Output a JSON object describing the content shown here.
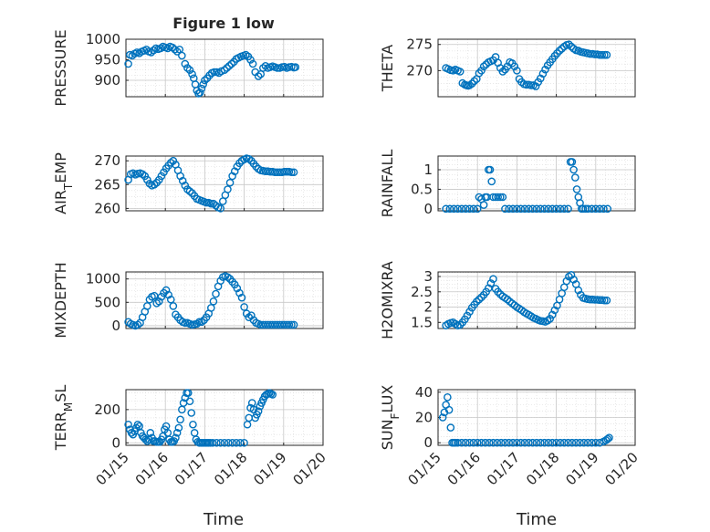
{
  "figure": {
    "title": "Figure 1 low",
    "x_date_ticks": [
      "01/15",
      "01/16",
      "01/17",
      "01/18",
      "01/19",
      "01/20"
    ],
    "x_axis_label": "Time",
    "marker_color": "#0072BD",
    "grid_color": "#d9d9d9",
    "axes_color": "#262626"
  },
  "chart_data": [
    {
      "type": "scatter",
      "ylabel": "PRESSURE",
      "ylim": [
        860,
        1000
      ],
      "yticks": [
        900,
        950,
        1000
      ],
      "yticklabels": [
        "900",
        "950",
        "1000"
      ],
      "xlim": [
        0,
        5
      ],
      "grid": true,
      "x": [
        0.06,
        0.1,
        0.16,
        0.22,
        0.28,
        0.34,
        0.4,
        0.46,
        0.52,
        0.58,
        0.64,
        0.7,
        0.76,
        0.82,
        0.88,
        0.94,
        1.0,
        1.06,
        1.12,
        1.18,
        1.24,
        1.3,
        1.36,
        1.42,
        1.5,
        1.56,
        1.62,
        1.68,
        1.72,
        1.76,
        1.8,
        1.84,
        1.88,
        1.92,
        1.96,
        2.0,
        2.06,
        2.12,
        2.18,
        2.24,
        2.3,
        2.36,
        2.42,
        2.5,
        2.56,
        2.62,
        2.68,
        2.74,
        2.8,
        2.86,
        2.92,
        2.98,
        3.04,
        3.1,
        3.16,
        3.22,
        3.28,
        3.36,
        3.42,
        3.48,
        3.54,
        3.6,
        3.66,
        3.72,
        3.78,
        3.84,
        3.9,
        3.96,
        4.02,
        4.08,
        4.14,
        4.2,
        4.26,
        4.3
      ],
      "y": [
        940,
        962,
        960,
        965,
        968,
        966,
        970,
        972,
        975,
        970,
        968,
        973,
        978,
        976,
        978,
        982,
        980,
        978,
        982,
        980,
        975,
        970,
        975,
        960,
        940,
        930,
        925,
        915,
        905,
        890,
        875,
        868,
        870,
        880,
        890,
        900,
        905,
        912,
        918,
        920,
        920,
        918,
        922,
        925,
        930,
        935,
        940,
        945,
        952,
        955,
        958,
        960,
        962,
        958,
        950,
        940,
        920,
        910,
        915,
        930,
        935,
        930,
        932,
        934,
        932,
        930,
        930,
        932,
        933,
        930,
        932,
        933,
        931,
        932
      ],
      "series": []
    },
    {
      "type": "scatter",
      "ylabel": "THETA",
      "ylim": [
        265,
        276
      ],
      "yticks": [
        270,
        275
      ],
      "yticklabels": [
        "270",
        "275"
      ],
      "xlim": [
        0,
        5
      ],
      "grid": true,
      "x": [
        0.2,
        0.26,
        0.32,
        0.38,
        0.44,
        0.5,
        0.56,
        0.62,
        0.68,
        0.72,
        0.76,
        0.8,
        0.86,
        0.92,
        0.98,
        1.04,
        1.1,
        1.16,
        1.22,
        1.28,
        1.34,
        1.4,
        1.46,
        1.52,
        1.58,
        1.64,
        1.7,
        1.76,
        1.82,
        1.88,
        1.94,
        2.0,
        2.06,
        2.12,
        2.18,
        2.24,
        2.3,
        2.36,
        2.42,
        2.48,
        2.54,
        2.6,
        2.66,
        2.72,
        2.78,
        2.84,
        2.9,
        2.96,
        3.02,
        3.08,
        3.14,
        3.2,
        3.26,
        3.32,
        3.38,
        3.44,
        3.5,
        3.56,
        3.62,
        3.68,
        3.74,
        3.8,
        3.86,
        3.92,
        3.98,
        4.04,
        4.1,
        4.16,
        4.22,
        4.28
      ],
      "y": [
        270.5,
        270.3,
        270.1,
        270.0,
        270.2,
        270.0,
        269.8,
        267.6,
        267.3,
        267.2,
        267.1,
        267.2,
        267.5,
        268.0,
        268.4,
        269.5,
        270.0,
        270.8,
        271.2,
        271.6,
        271.8,
        272.0,
        272.6,
        271.5,
        270.5,
        269.8,
        270.2,
        270.8,
        271.6,
        271.4,
        270.8,
        270.0,
        268.4,
        267.8,
        267.4,
        267.3,
        267.3,
        267.2,
        267.2,
        267.0,
        267.8,
        268.5,
        269.4,
        270.2,
        271.0,
        271.6,
        272.2,
        272.8,
        273.3,
        273.8,
        274.2,
        274.6,
        274.9,
        275.0,
        274.6,
        274.2,
        273.9,
        273.8,
        273.6,
        273.5,
        273.4,
        273.3,
        273.2,
        273.2,
        273.1,
        273.1,
        273.0,
        273.0,
        273.0,
        273.0
      ],
      "series": []
    },
    {
      "type": "scatter",
      "ylabel": "AIR_TEMP",
      "ylim": [
        259.5,
        271
      ],
      "yticks": [
        260,
        265,
        270
      ],
      "yticklabels": [
        "260",
        "265",
        "270"
      ],
      "xlim": [
        0,
        5
      ],
      "grid": true,
      "x": [
        0.06,
        0.12,
        0.18,
        0.24,
        0.3,
        0.36,
        0.42,
        0.48,
        0.54,
        0.6,
        0.66,
        0.72,
        0.78,
        0.84,
        0.9,
        0.96,
        1.02,
        1.08,
        1.14,
        1.2,
        1.26,
        1.32,
        1.38,
        1.44,
        1.5,
        1.56,
        1.62,
        1.68,
        1.74,
        1.8,
        1.86,
        1.92,
        1.98,
        2.04,
        2.1,
        2.16,
        2.22,
        2.28,
        2.34,
        2.4,
        2.46,
        2.52,
        2.58,
        2.64,
        2.7,
        2.76,
        2.82,
        2.88,
        2.94,
        3.0,
        3.06,
        3.12,
        3.18,
        3.24,
        3.3,
        3.36,
        3.42,
        3.48,
        3.54,
        3.6,
        3.66,
        3.72,
        3.78,
        3.84,
        3.9,
        3.96,
        4.02,
        4.08,
        4.14,
        4.2,
        4.26
      ],
      "y": [
        266.0,
        267.2,
        267.4,
        267.1,
        267.3,
        267.4,
        267.2,
        266.8,
        266.0,
        265.2,
        264.8,
        265.0,
        265.4,
        266.0,
        266.8,
        267.6,
        268.4,
        269.0,
        269.6,
        270.0,
        269.2,
        268.0,
        266.8,
        265.8,
        264.8,
        264.0,
        263.6,
        263.2,
        262.6,
        262.0,
        261.8,
        261.6,
        261.4,
        261.2,
        261.2,
        261.0,
        261.0,
        260.6,
        260.2,
        260.0,
        261.5,
        262.8,
        264.0,
        265.4,
        266.8,
        267.8,
        268.8,
        269.5,
        270.0,
        270.3,
        270.5,
        270.4,
        270.0,
        269.4,
        268.8,
        268.3,
        268.0,
        267.9,
        267.8,
        267.8,
        267.7,
        267.7,
        267.6,
        267.6,
        267.6,
        267.6,
        267.7,
        267.7,
        267.7,
        267.6,
        267.6
      ],
      "series": []
    },
    {
      "type": "scatter",
      "ylabel": "RAINFALL",
      "ylim": [
        -0.05,
        1.35
      ],
      "yticks": [
        0,
        0.5,
        1
      ],
      "yticklabels": [
        "0",
        "0.5",
        "1"
      ],
      "xlim": [
        0,
        5
      ],
      "grid": true,
      "x": [
        0.2,
        0.3,
        0.4,
        0.5,
        0.6,
        0.7,
        0.8,
        0.9,
        1.0,
        1.04,
        1.1,
        1.16,
        1.2,
        1.24,
        1.28,
        1.32,
        1.36,
        1.4,
        1.46,
        1.52,
        1.58,
        1.64,
        1.7,
        1.8,
        1.9,
        2.0,
        2.1,
        2.2,
        2.3,
        2.4,
        2.5,
        2.6,
        2.7,
        2.8,
        2.9,
        3.0,
        3.1,
        3.2,
        3.3,
        3.36,
        3.4,
        3.44,
        3.48,
        3.52,
        3.56,
        3.6,
        3.64,
        3.68,
        3.74,
        3.8,
        3.9,
        4.0,
        4.1,
        4.2,
        4.3
      ],
      "y": [
        0,
        0,
        0,
        0,
        0,
        0,
        0,
        0,
        0,
        0.3,
        0.25,
        0.1,
        0.3,
        0.3,
        1.0,
        1.0,
        0.7,
        0.3,
        0.3,
        0.3,
        0.3,
        0.3,
        0,
        0,
        0,
        0,
        0,
        0,
        0,
        0,
        0,
        0,
        0,
        0,
        0,
        0,
        0,
        0,
        0,
        1.2,
        1.2,
        1.0,
        0.8,
        0.5,
        0.3,
        0.15,
        0,
        0,
        0,
        0,
        0,
        0,
        0,
        0,
        0
      ],
      "series": []
    },
    {
      "type": "scatter",
      "ylabel": "MIXDEPTH",
      "ylim": [
        -60,
        1150
      ],
      "yticks": [
        0,
        500,
        1000
      ],
      "yticklabels": [
        "0",
        "500",
        "1000"
      ],
      "xlim": [
        0,
        5
      ],
      "grid": true,
      "x": [
        0.06,
        0.12,
        0.18,
        0.24,
        0.3,
        0.36,
        0.42,
        0.48,
        0.54,
        0.6,
        0.66,
        0.72,
        0.78,
        0.84,
        0.9,
        0.96,
        1.02,
        1.08,
        1.14,
        1.2,
        1.26,
        1.32,
        1.38,
        1.44,
        1.5,
        1.56,
        1.62,
        1.68,
        1.74,
        1.8,
        1.86,
        1.92,
        1.98,
        2.04,
        2.1,
        2.16,
        2.22,
        2.28,
        2.34,
        2.4,
        2.46,
        2.52,
        2.58,
        2.64,
        2.7,
        2.76,
        2.82,
        2.88,
        2.94,
        3.0,
        3.06,
        3.12,
        3.18,
        3.24,
        3.3,
        3.36,
        3.42,
        3.48,
        3.54,
        3.6,
        3.66,
        3.72,
        3.78,
        3.84,
        3.9,
        3.96,
        4.02,
        4.08,
        4.14,
        4.2,
        4.26
      ],
      "y": [
        80,
        40,
        20,
        0,
        20,
        60,
        180,
        300,
        420,
        560,
        620,
        640,
        480,
        520,
        620,
        700,
        760,
        660,
        560,
        420,
        240,
        180,
        120,
        80,
        60,
        60,
        40,
        20,
        30,
        40,
        80,
        80,
        120,
        180,
        260,
        380,
        520,
        680,
        840,
        960,
        1040,
        1060,
        1040,
        1000,
        940,
        880,
        800,
        700,
        600,
        400,
        260,
        180,
        220,
        120,
        60,
        40,
        20,
        20,
        20,
        20,
        20,
        20,
        20,
        20,
        20,
        20,
        20,
        20,
        20,
        20,
        20
      ],
      "series": []
    },
    {
      "type": "scatter",
      "ylabel": "H2OMIXRA",
      "ylim": [
        1.3,
        3.15
      ],
      "yticks": [
        1.5,
        2,
        2.5,
        3
      ],
      "yticklabels": [
        "1.5",
        "2",
        "2.5",
        "3"
      ],
      "xlim": [
        0,
        5
      ],
      "grid": true,
      "x": [
        0.2,
        0.26,
        0.32,
        0.38,
        0.44,
        0.5,
        0.56,
        0.62,
        0.68,
        0.74,
        0.8,
        0.86,
        0.92,
        0.98,
        1.04,
        1.1,
        1.16,
        1.22,
        1.28,
        1.34,
        1.4,
        1.46,
        1.52,
        1.58,
        1.64,
        1.7,
        1.76,
        1.82,
        1.88,
        1.94,
        2.0,
        2.06,
        2.12,
        2.18,
        2.24,
        2.3,
        2.36,
        2.42,
        2.48,
        2.54,
        2.6,
        2.66,
        2.72,
        2.78,
        2.84,
        2.9,
        2.96,
        3.02,
        3.08,
        3.14,
        3.2,
        3.26,
        3.32,
        3.38,
        3.44,
        3.5,
        3.56,
        3.62,
        3.68,
        3.74,
        3.8,
        3.86,
        3.92,
        3.98,
        4.04,
        4.1,
        4.16,
        4.22,
        4.28
      ],
      "y": [
        1.4,
        1.45,
        1.48,
        1.5,
        1.45,
        1.4,
        1.42,
        1.5,
        1.6,
        1.72,
        1.85,
        1.98,
        2.08,
        2.18,
        2.25,
        2.32,
        2.4,
        2.5,
        2.62,
        2.78,
        2.92,
        2.6,
        2.5,
        2.42,
        2.35,
        2.3,
        2.25,
        2.18,
        2.12,
        2.06,
        2.0,
        1.95,
        1.9,
        1.84,
        1.79,
        1.75,
        1.7,
        1.65,
        1.62,
        1.58,
        1.55,
        1.54,
        1.52,
        1.56,
        1.62,
        1.75,
        1.9,
        2.05,
        2.25,
        2.45,
        2.65,
        2.85,
        3.0,
        3.05,
        2.9,
        2.75,
        2.55,
        2.4,
        2.3,
        2.28,
        2.26,
        2.25,
        2.25,
        2.24,
        2.24,
        2.23,
        2.23,
        2.22,
        2.22
      ],
      "series": []
    },
    {
      "type": "scatter",
      "ylabel": "TERR_MSL",
      "ylim": [
        -15,
        320
      ],
      "yticks": [
        0,
        200
      ],
      "yticklabels": [
        "0",
        "200"
      ],
      "xlim": [
        0,
        5
      ],
      "grid": true,
      "x": [
        0.06,
        0.1,
        0.14,
        0.18,
        0.22,
        0.26,
        0.3,
        0.34,
        0.38,
        0.42,
        0.46,
        0.5,
        0.54,
        0.58,
        0.62,
        0.66,
        0.7,
        0.74,
        0.78,
        0.82,
        0.86,
        0.9,
        0.94,
        0.98,
        1.02,
        1.06,
        1.1,
        1.14,
        1.18,
        1.22,
        1.26,
        1.3,
        1.34,
        1.38,
        1.42,
        1.46,
        1.5,
        1.54,
        1.58,
        1.62,
        1.66,
        1.7,
        1.74,
        1.78,
        1.82,
        1.86,
        1.9,
        1.94,
        1.98,
        2.02,
        2.06,
        2.1,
        2.14,
        2.2,
        2.3,
        2.4,
        2.5,
        2.6,
        2.7,
        2.8,
        2.9,
        3.0,
        3.08,
        3.12,
        3.16,
        3.2,
        3.24,
        3.28,
        3.32,
        3.36,
        3.4,
        3.44,
        3.48,
        3.52,
        3.56,
        3.6,
        3.64,
        3.68,
        3.72
      ],
      "y": [
        110,
        80,
        60,
        50,
        70,
        90,
        110,
        100,
        60,
        40,
        30,
        20,
        10,
        20,
        60,
        30,
        10,
        10,
        5,
        5,
        5,
        20,
        40,
        80,
        100,
        60,
        20,
        5,
        5,
        10,
        30,
        60,
        90,
        140,
        200,
        240,
        270,
        300,
        300,
        250,
        180,
        110,
        60,
        20,
        5,
        0,
        0,
        0,
        0,
        0,
        0,
        0,
        0,
        0,
        0,
        0,
        0,
        0,
        0,
        0,
        0,
        0,
        110,
        150,
        210,
        240,
        200,
        150,
        170,
        190,
        220,
        240,
        260,
        280,
        290,
        295,
        300,
        295,
        290
      ],
      "series": []
    },
    {
      "type": "scatter",
      "ylabel": "SUN_FLUX",
      "ylim": [
        -2,
        42
      ],
      "yticks": [
        0,
        20,
        40
      ],
      "yticklabels": [
        "0",
        "20",
        "40"
      ],
      "xlim": [
        0,
        5
      ],
      "grid": true,
      "x": [
        0.12,
        0.16,
        0.2,
        0.24,
        0.28,
        0.32,
        0.36,
        0.4,
        0.44,
        0.5,
        0.6,
        0.7,
        0.8,
        0.9,
        1.0,
        1.1,
        1.2,
        1.3,
        1.4,
        1.5,
        1.6,
        1.7,
        1.8,
        1.9,
        2.0,
        2.1,
        2.2,
        2.3,
        2.4,
        2.5,
        2.6,
        2.7,
        2.8,
        2.9,
        3.0,
        3.1,
        3.2,
        3.3,
        3.4,
        3.5,
        3.6,
        3.7,
        3.8,
        3.9,
        4.0,
        4.1,
        4.2,
        4.26,
        4.3,
        4.34
      ],
      "y": [
        20,
        24,
        30,
        36,
        26,
        12,
        0,
        0,
        0,
        0,
        0,
        0,
        0,
        0,
        0,
        0,
        0,
        0,
        0,
        0,
        0,
        0,
        0,
        0,
        0,
        0,
        0,
        0,
        0,
        0,
        0,
        0,
        0,
        0,
        0,
        0,
        0,
        0,
        0,
        0,
        0,
        0,
        0,
        0,
        0,
        0,
        1,
        2,
        3,
        4
      ],
      "series": []
    }
  ]
}
